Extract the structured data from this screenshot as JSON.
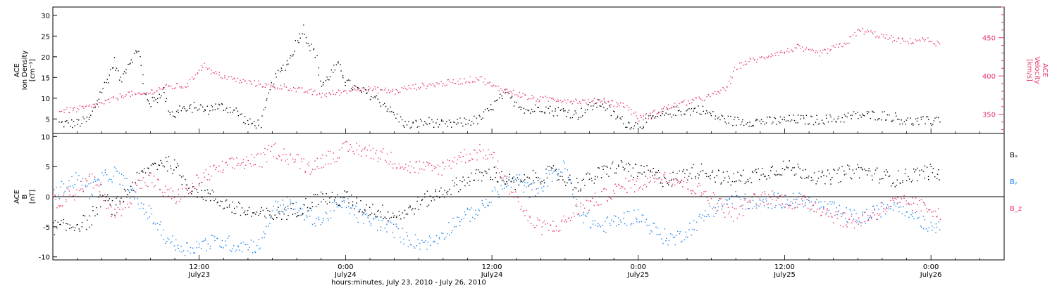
{
  "colors": {
    "black": "#000000",
    "pink": "#e8386a",
    "blue": "#1f84e8",
    "zero_line": "#000000"
  },
  "x_axis": {
    "title": "hours:minutes, July 23, 2010 - July 26, 2010",
    "ticks": [
      {
        "hour": 12,
        "time": "12:00",
        "date": "July23"
      },
      {
        "hour": 24,
        "time": "0:00",
        "date": "July24"
      },
      {
        "hour": 36,
        "time": "12:00",
        "date": "July24"
      },
      {
        "hour": 48,
        "time": "0:00",
        "date": "July25"
      },
      {
        "hour": 60,
        "time": "12:00",
        "date": "July25"
      },
      {
        "hour": 72,
        "time": "0:00",
        "date": "July26"
      }
    ],
    "range_hours": [
      0,
      78
    ]
  },
  "chart_data": [
    {
      "type": "scatter",
      "panel": "top",
      "left_axis": {
        "label_lines": [
          "ACE",
          "Ion Density",
          "[cm⁻³]"
        ],
        "ylim": [
          1.5,
          32
        ],
        "ticks": [
          5,
          10,
          15,
          20,
          25,
          30
        ]
      },
      "right_axis": {
        "label_lines": [
          "ACE",
          "Velocity",
          "[km/s]"
        ],
        "ylim": [
          325,
          490
        ],
        "ticks": [
          350,
          400,
          450
        ]
      },
      "series": [
        {
          "axis": "left",
          "color": "black",
          "x": [
            0.5,
            2,
            3,
            4,
            4.5,
            5,
            5.5,
            6,
            6.5,
            7,
            7.5,
            8,
            8.5,
            9,
            9.5,
            10,
            10.5,
            11,
            11.5,
            12,
            12.5,
            13,
            14,
            15,
            16,
            17,
            18,
            19,
            19.5,
            20,
            20.5,
            21,
            21.5,
            22,
            22.5,
            23,
            23.5,
            24,
            25,
            26,
            27,
            28,
            29,
            30,
            31,
            32,
            33,
            34,
            35,
            36,
            37,
            38,
            39,
            40,
            41,
            42,
            43,
            44,
            45,
            46,
            47,
            48,
            49,
            50,
            51,
            52,
            53,
            54,
            55,
            56,
            57,
            58,
            59,
            60,
            61,
            62,
            63,
            64,
            65,
            66,
            67,
            68,
            69,
            70,
            71,
            72,
            72.8
          ],
          "values": [
            4,
            4,
            5,
            12,
            15,
            19,
            14,
            18,
            20,
            22,
            11,
            9,
            10,
            12,
            7,
            6,
            8,
            7,
            8,
            8,
            7,
            8,
            8,
            7,
            4,
            4,
            14,
            18,
            20,
            24,
            27,
            23,
            21,
            13,
            15,
            17,
            18,
            14,
            12,
            11,
            9,
            6,
            3.5,
            4,
            4.5,
            3.5,
            4,
            4.5,
            5,
            8,
            11,
            9,
            7,
            8,
            7,
            7,
            6,
            8,
            9,
            6,
            4,
            3.5,
            5,
            6,
            7,
            7,
            7.5,
            6,
            5,
            4.5,
            4.5,
            4.5,
            4.5,
            4.8,
            5,
            4.8,
            5,
            5,
            5.5,
            6,
            6,
            6,
            5.5,
            4.5,
            4.5,
            4.5,
            5.5
          ]
        },
        {
          "axis": "right",
          "color": "pink",
          "x": [
            0.5,
            2,
            3,
            4,
            5,
            6,
            7,
            8,
            9,
            10,
            11,
            12,
            12.5,
            13,
            14,
            15,
            16,
            17,
            18,
            19,
            20,
            21,
            22,
            23,
            24,
            25,
            26,
            27,
            28,
            29,
            30,
            31,
            32,
            33,
            34,
            35,
            36,
            37,
            38,
            39,
            40,
            41,
            42,
            43,
            44,
            45,
            46,
            47,
            48,
            49,
            50,
            51,
            52,
            53,
            54,
            55,
            55.5,
            56,
            57,
            58,
            59,
            60,
            61,
            62,
            63,
            64,
            65,
            66,
            67,
            68,
            69,
            70,
            71,
            72,
            72.8
          ],
          "values": [
            355,
            357,
            360,
            365,
            370,
            378,
            375,
            380,
            385,
            387,
            388,
            410,
            415,
            405,
            400,
            395,
            392,
            390,
            386,
            387,
            382,
            380,
            376,
            378,
            381,
            385,
            383,
            382,
            380,
            385,
            387,
            389,
            391,
            393,
            395,
            398,
            387,
            382,
            378,
            372,
            370,
            371,
            369,
            368,
            366,
            370,
            365,
            361,
            345,
            350,
            358,
            362,
            366,
            370,
            375,
            383,
            392,
            412,
            420,
            423,
            430,
            432,
            438,
            432,
            430,
            437,
            443,
            460,
            457,
            452,
            448,
            445,
            448,
            446,
            440
          ]
        }
      ]
    },
    {
      "type": "scatter",
      "panel": "bottom",
      "left_axis": {
        "label_lines": [
          "ACE",
          "B",
          "[nT]"
        ],
        "ylim": [
          -10.5,
          10.5
        ],
        "ticks": [
          -10,
          -5,
          0,
          5,
          10
        ]
      },
      "legend": [
        {
          "name": "Bₓ",
          "color": "black"
        },
        {
          "name": "Bᵧ",
          "color": "blue"
        },
        {
          "name": "B_z",
          "color": "pink"
        }
      ],
      "series": [
        {
          "name": "Bₓ",
          "color": "black",
          "x": [
            0,
            1,
            2,
            3,
            4,
            5,
            6,
            7,
            8,
            9,
            10,
            11,
            12,
            13,
            14,
            15,
            16,
            17,
            18,
            19,
            20,
            21,
            22,
            23,
            24,
            25,
            26,
            27,
            28,
            29,
            30,
            31,
            32,
            33,
            34,
            35,
            36,
            37,
            38,
            39,
            40,
            41,
            42,
            43,
            44,
            45,
            46,
            47,
            48,
            49,
            50,
            51,
            52,
            53,
            54,
            55,
            56,
            57,
            58,
            59,
            60,
            61,
            62,
            63,
            64,
            65,
            66,
            67,
            68,
            69,
            70,
            71,
            72,
            72.8
          ],
          "values": [
            -5,
            -5,
            -4.5,
            -4,
            0,
            -2,
            1,
            3,
            5,
            6,
            5,
            2,
            1,
            0,
            -1,
            -2,
            -2.5,
            -3,
            -3,
            -2.5,
            -2,
            -1,
            0,
            -0.5,
            0,
            -1.5,
            -2,
            -2.5,
            -3,
            -2.5,
            -1,
            0,
            1,
            2,
            3,
            3.5,
            4,
            3,
            2,
            3,
            3.5,
            4,
            3,
            2,
            3,
            4,
            5,
            5,
            4,
            4,
            3,
            3,
            4,
            4.5,
            4,
            3,
            3,
            3.5,
            4,
            4.5,
            5,
            4.5,
            4,
            3,
            3.5,
            4,
            4.5,
            4,
            3.5,
            3,
            3.5,
            4,
            4.2,
            3.5
          ]
        },
        {
          "name": "Bᵧ",
          "color": "blue",
          "x": [
            0,
            1,
            2,
            3,
            4,
            5,
            6,
            7,
            8,
            9,
            10,
            11,
            12,
            13,
            14,
            15,
            16,
            17,
            18,
            19,
            20,
            21,
            22,
            23,
            24,
            25,
            26,
            27,
            28,
            29,
            30,
            31,
            32,
            33,
            34,
            35,
            36,
            37,
            38,
            39,
            40,
            41,
            42,
            43,
            44,
            45,
            46,
            47,
            48,
            49,
            50,
            51,
            52,
            53,
            54,
            55,
            56,
            57,
            58,
            59,
            60,
            61,
            62,
            63,
            64,
            65,
            66,
            67,
            68,
            69,
            70,
            71,
            72,
            72.8
          ],
          "values": [
            0,
            2,
            3,
            1,
            3,
            4,
            2,
            -1,
            -3,
            -6,
            -8,
            -8.5,
            -8,
            -7.5,
            -7.5,
            -8,
            -8,
            -8,
            -2,
            -1,
            -2,
            -3,
            -4,
            -2,
            -1,
            -3,
            -4,
            -4.5,
            -5.5,
            -7,
            -7.5,
            -7.5,
            -6,
            -4,
            -3,
            -2,
            0,
            2,
            3,
            1,
            2,
            4,
            5,
            -2,
            -4,
            -5,
            -4,
            -3.5,
            -3,
            -5,
            -6.5,
            -7,
            -5.5,
            -4,
            -2,
            -1,
            0,
            -1,
            -1.5,
            -0.5,
            -0.5,
            -0.5,
            -1,
            -1.5,
            -2,
            -3,
            -3.5,
            -3,
            -2,
            -1,
            -2,
            -3.5,
            -5,
            -4
          ]
        },
        {
          "name": "B_z",
          "color": "pink",
          "x": [
            0,
            1,
            2,
            3,
            4,
            5,
            6,
            7,
            8,
            9,
            10,
            11,
            12,
            13,
            14,
            15,
            16,
            17,
            18,
            19,
            20,
            21,
            22,
            23,
            24,
            25,
            26,
            27,
            28,
            29,
            30,
            31,
            32,
            33,
            34,
            35,
            36,
            37,
            38,
            39,
            40,
            41,
            42,
            43,
            44,
            45,
            46,
            47,
            48,
            49,
            50,
            51,
            52,
            53,
            54,
            55,
            56,
            57,
            58,
            59,
            60,
            61,
            62,
            63,
            64,
            65,
            66,
            67,
            68,
            69,
            70,
            71,
            72,
            72.8
          ],
          "values": [
            -1,
            0,
            1,
            3,
            1,
            -3,
            -1,
            2,
            3,
            1,
            0,
            1,
            3,
            4,
            5,
            5.5,
            6,
            6,
            8,
            7,
            6,
            5,
            6,
            7,
            8,
            8,
            7.5,
            7,
            6,
            5,
            5,
            4.5,
            5,
            6.5,
            7,
            7.5,
            7,
            3,
            0,
            -4,
            -5,
            -5,
            -4,
            -2,
            -1,
            0,
            1,
            2,
            2,
            3,
            4,
            3,
            2,
            1,
            0,
            -2,
            -3,
            -1,
            0,
            0,
            -0.5,
            -1,
            -1,
            -2,
            -3,
            -4,
            -4,
            -3,
            -2,
            -1,
            -1,
            -1.5,
            -2,
            -2.5
          ]
        }
      ]
    }
  ]
}
